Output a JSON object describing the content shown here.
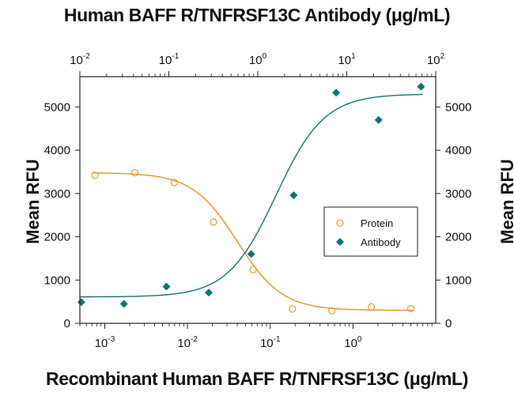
{
  "titles": {
    "top": "Human BAFF R/TNFRSF13C Antibody (μg/mL)",
    "bottom": "Recombinant Human BAFF R/TNFRSF13C (μg/mL)",
    "ylabel_left": "Mean RFU",
    "ylabel_right": "Mean RFU"
  },
  "chart_data": {
    "type": "scatter",
    "x_bottom_scale": "log",
    "x_top_scale": "log",
    "x_bottom_range": [
      0.0005,
      10
    ],
    "x_top_range": [
      0.01,
      100
    ],
    "ylim": [
      0,
      5700
    ],
    "x_bottom_ticks": [
      {
        "value": 0.001,
        "base": "10",
        "exp": "-3"
      },
      {
        "value": 0.01,
        "base": "10",
        "exp": "-2"
      },
      {
        "value": 0.1,
        "base": "10",
        "exp": "-1"
      },
      {
        "value": 1,
        "base": "10",
        "exp": "0"
      }
    ],
    "x_top_ticks": [
      {
        "value": 0.01,
        "base": "10",
        "exp": "-2"
      },
      {
        "value": 0.1,
        "base": "10",
        "exp": "-1"
      },
      {
        "value": 1,
        "base": "10",
        "exp": "0"
      },
      {
        "value": 10,
        "base": "10",
        "exp": "1"
      },
      {
        "value": 100,
        "base": "10",
        "exp": "2"
      }
    ],
    "y_ticks": [
      0,
      1000,
      2000,
      3000,
      4000,
      5000
    ],
    "legend_position": "right",
    "series": [
      {
        "name": "Protein",
        "axis": "bottom",
        "marker": "open-circle",
        "color": "#E8931E",
        "x": [
          0.00076,
          0.0023,
          0.0069,
          0.0206,
          0.062,
          0.185,
          0.556,
          1.67,
          5.0
        ],
        "y": [
          3420,
          3480,
          3250,
          2340,
          1240,
          330,
          290,
          380,
          340
        ],
        "fit": {
          "bottom": 300,
          "top": 3480,
          "ec50": 0.04,
          "hill": 1.6
        }
      },
      {
        "name": "Antibody",
        "axis": "top",
        "marker": "filled-diamond",
        "color": "#137371",
        "x": [
          0.0104,
          0.0313,
          0.094,
          0.281,
          0.844,
          2.53,
          7.6,
          22.8,
          68.4
        ],
        "y": [
          490,
          450,
          850,
          710,
          1600,
          2960,
          5330,
          4700,
          5470
        ],
        "fit": {
          "bottom": 610,
          "top": 5300,
          "ec50": 1.6,
          "hill": 1.6
        }
      }
    ]
  }
}
